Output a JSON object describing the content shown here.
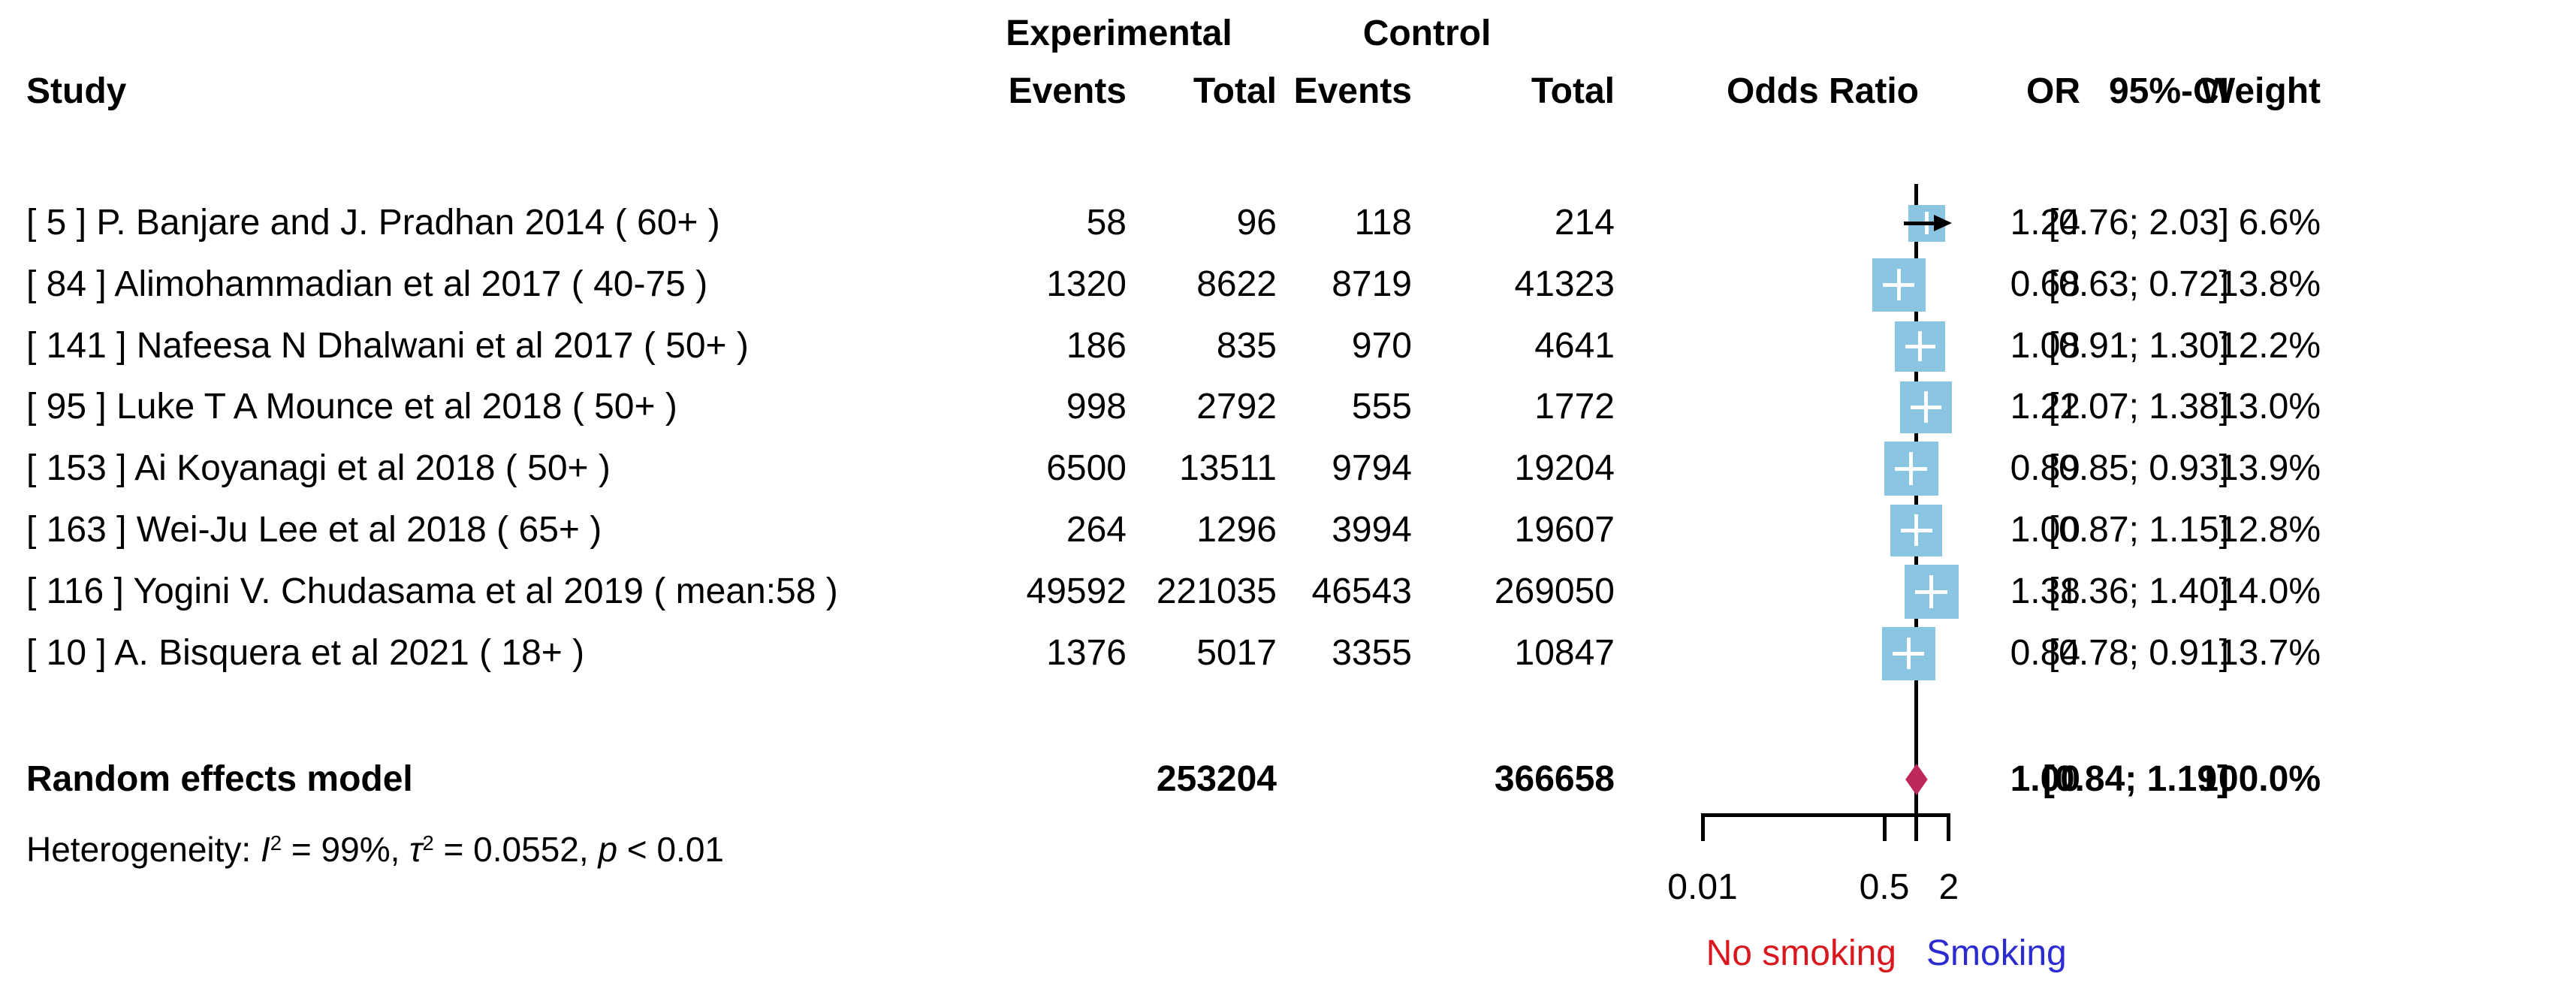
{
  "colors": {
    "square": "#8AC6E2",
    "diamond": "#BC2857",
    "no_smoking_red": "#D8181E",
    "smoking_blue": "#2B2BD0",
    "line": "#000000"
  },
  "header": {
    "experimental": "Experimental",
    "control": "Control",
    "study": "Study",
    "exp_events": "Events",
    "exp_total": "Total",
    "ctrl_events": "Events",
    "ctrl_total": "Total",
    "odds_ratio": "Odds Ratio",
    "or": "OR",
    "ci": "95%-CI",
    "weight": "Weight"
  },
  "heterogeneity": {
    "parts": [
      {
        "t": "Heterogeneity: "
      },
      {
        "t": "I",
        "italic": true
      },
      {
        "t": "2",
        "sup": true
      },
      {
        "t": " = 99%, "
      },
      {
        "t": "τ",
        "italic": true
      },
      {
        "t": "2",
        "sup": true
      },
      {
        "t": " = 0.0552, "
      },
      {
        "t": "p",
        "italic": true
      },
      {
        "t": " < 0.01"
      }
    ]
  },
  "chart_data": {
    "type": "forest",
    "effect_measure": "Odds Ratio",
    "x_scale": "log",
    "axis": {
      "min": 0.01,
      "max": 2,
      "null_line": 1,
      "ticks": [
        {
          "label": "0.01",
          "value": 0.01
        },
        {
          "label": "0.5",
          "value": 0.5
        },
        {
          "label": "2",
          "value": 2
        }
      ]
    },
    "direction_labels": {
      "left": "No smoking",
      "right": "Smoking"
    },
    "studies": [
      {
        "label": "[ 5 ] P. Banjare and J. Pradhan 2014 ( 60+ )",
        "exp_events": "58",
        "exp_total": "96",
        "ctrl_events": "118",
        "ctrl_total": "214",
        "or": 1.24,
        "ci_low": 0.76,
        "ci_high": 2.03,
        "or_text": "1.24",
        "ci_text": "[0.76; 2.03]",
        "weight": 6.6,
        "weight_text": "6.6%"
      },
      {
        "label": "[ 84 ] Alimohammadian et al 2017 ( 40-75 )",
        "exp_events": "1320",
        "exp_total": "8622",
        "ctrl_events": "8719",
        "ctrl_total": "41323",
        "or": 0.68,
        "ci_low": 0.63,
        "ci_high": 0.72,
        "or_text": "0.68",
        "ci_text": "[0.63; 0.72]",
        "weight": 13.8,
        "weight_text": "13.8%"
      },
      {
        "label": "[ 141 ] Nafeesa N Dhalwani et al 2017 ( 50+ )",
        "exp_events": "186",
        "exp_total": "835",
        "ctrl_events": "970",
        "ctrl_total": "4641",
        "or": 1.08,
        "ci_low": 0.91,
        "ci_high": 1.3,
        "or_text": "1.08",
        "ci_text": "[0.91; 1.30]",
        "weight": 12.2,
        "weight_text": "12.2%"
      },
      {
        "label": "[ 95 ] Luke T A Mounce et al 2018 ( 50+ )",
        "exp_events": "998",
        "exp_total": "2792",
        "ctrl_events": "555",
        "ctrl_total": "1772",
        "or": 1.22,
        "ci_low": 1.07,
        "ci_high": 1.38,
        "or_text": "1.22",
        "ci_text": "[1.07; 1.38]",
        "weight": 13.0,
        "weight_text": "13.0%"
      },
      {
        "label": "[ 153 ] Ai Koyanagi et al 2018 ( 50+ )",
        "exp_events": "6500",
        "exp_total": "13511",
        "ctrl_events": "9794",
        "ctrl_total": "19204",
        "or": 0.89,
        "ci_low": 0.85,
        "ci_high": 0.93,
        "or_text": "0.89",
        "ci_text": "[0.85; 0.93]",
        "weight": 13.9,
        "weight_text": "13.9%"
      },
      {
        "label": "[ 163 ] Wei-Ju Lee et al 2018 ( 65+ )",
        "exp_events": "264",
        "exp_total": "1296",
        "ctrl_events": "3994",
        "ctrl_total": "19607",
        "or": 1.0,
        "ci_low": 0.87,
        "ci_high": 1.15,
        "or_text": "1.00",
        "ci_text": "[0.87; 1.15]",
        "weight": 12.8,
        "weight_text": "12.8%"
      },
      {
        "label": "[ 116 ] Yogini V. Chudasama et al 2019 ( mean:58 )",
        "exp_events": "49592",
        "exp_total": "221035",
        "ctrl_events": "46543",
        "ctrl_total": "269050",
        "or": 1.38,
        "ci_low": 1.36,
        "ci_high": 1.4,
        "or_text": "1.38",
        "ci_text": "[1.36; 1.40]",
        "weight": 14.0,
        "weight_text": "14.0%"
      },
      {
        "label": "[ 10 ] A. Bisquera et al 2021 ( 18+ )",
        "exp_events": "1376",
        "exp_total": "5017",
        "ctrl_events": "3355",
        "ctrl_total": "10847",
        "or": 0.84,
        "ci_low": 0.78,
        "ci_high": 0.91,
        "or_text": "0.84",
        "ci_text": "[0.78; 0.91]",
        "weight": 13.7,
        "weight_text": "13.7%"
      }
    ],
    "summary": {
      "label": "Random effects model",
      "exp_total": "253204",
      "ctrl_total": "366658",
      "or": 1.0,
      "ci_low": 0.84,
      "ci_high": 1.19,
      "or_text": "1.00",
      "ci_text": "[0.84; 1.19]",
      "weight_text": "100.0%"
    },
    "heterogeneity_text": "Heterogeneity: I2 = 99%, tau2 = 0.0552, p < 0.01"
  }
}
